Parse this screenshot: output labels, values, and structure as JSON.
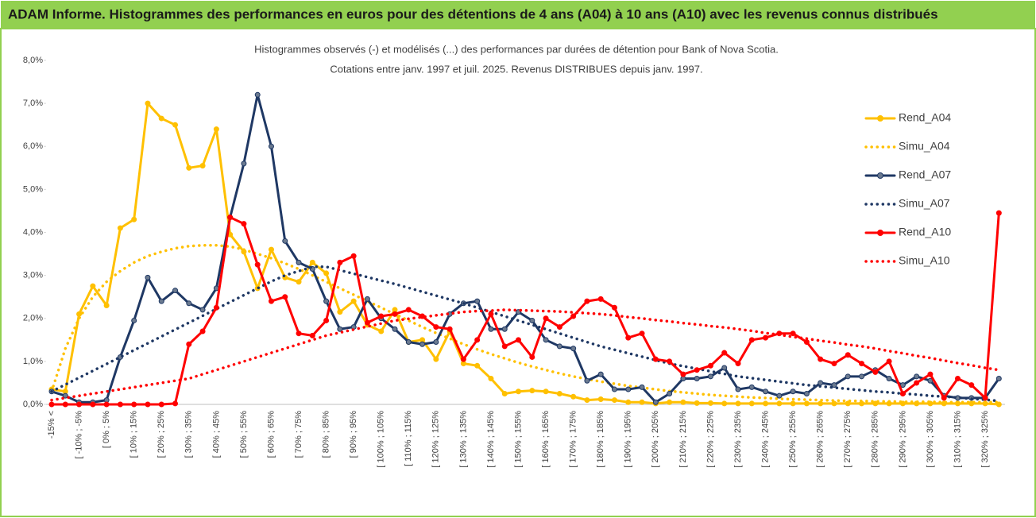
{
  "chart_data": {
    "type": "line",
    "title": "ADAM Informe. Histogrammes des performances en euros pour des détentions de 4 ans (A04) à 10 ans (A10) avec les revenus connus distribués",
    "subtitle": [
      "Histogrammes observés (-) et modélisés (...) des performances par durées de détention pour Bank of Nova Scotia.",
      "Cotations entre janv. 1997 et juil. 2025. Revenus DISTRIBUES depuis janv. 1997."
    ],
    "categories": [
      "-15% <",
      null,
      "[ -10% ; -5%",
      null,
      "[ 0% ; 5%",
      null,
      "[ 10% ; 15%",
      null,
      "[ 20% ; 25%",
      null,
      "[ 30% ; 35%",
      null,
      "[ 40% ; 45%",
      null,
      "[ 50% ; 55%",
      null,
      "[ 60% ; 65%",
      null,
      "[ 70% ; 75%",
      null,
      "[ 80% ; 85%",
      null,
      "[ 90% ; 95%",
      null,
      "[ 100% ; 105%",
      null,
      "[ 110% ; 115%",
      null,
      "[ 120% ; 125%",
      null,
      "[ 130% ; 135%",
      null,
      "[ 140% ; 145%",
      null,
      "[ 150% ; 155%",
      null,
      "[ 160% ; 165%",
      null,
      "[ 170% ; 175%",
      null,
      "[ 180% ; 185%",
      null,
      "[ 190% ; 195%",
      null,
      "[ 200% ; 205%",
      null,
      "[ 210% ; 215%",
      null,
      "[ 220% ; 225%",
      null,
      "[ 230% ; 235%",
      null,
      "[ 240% ; 245%",
      null,
      "[ 250% ; 255%",
      null,
      "[ 260% ; 265%",
      null,
      "[ 270% ; 275%",
      null,
      "[ 280% ; 285%",
      null,
      "[ 290% ; 295%",
      null,
      "[ 300% ; 305%",
      null,
      "[ 310% ; 315%",
      null,
      "[ 320% ; 325%",
      null
    ],
    "ylim": [
      0,
      8
    ],
    "yticks": [
      {
        "value": 0,
        "label": "0,0%"
      },
      {
        "value": 1,
        "label": "1,0%"
      },
      {
        "value": 2,
        "label": "2,0%"
      },
      {
        "value": 3,
        "label": "3,0%"
      },
      {
        "value": 4,
        "label": "4,0%"
      },
      {
        "value": 5,
        "label": "5,0%"
      },
      {
        "value": 6,
        "label": "6,0%"
      },
      {
        "value": 7,
        "label": "7,0%"
      },
      {
        "value": 8,
        "label": "8,0%"
      }
    ],
    "grid": false,
    "legend": "right",
    "series": [
      {
        "name": "Rend_A04",
        "color": "#ffc000",
        "style": "solid",
        "markers": true,
        "values": [
          0.35,
          0.3,
          2.1,
          2.75,
          2.3,
          4.1,
          4.3,
          7.0,
          6.65,
          6.5,
          5.5,
          5.55,
          6.4,
          3.95,
          3.55,
          2.7,
          3.6,
          2.95,
          2.85,
          3.3,
          3.05,
          2.15,
          2.4,
          1.85,
          1.7,
          2.2,
          1.45,
          1.5,
          1.05,
          1.7,
          0.95,
          0.9,
          0.6,
          0.25,
          0.3,
          0.32,
          0.3,
          0.25,
          0.18,
          0.1,
          0.12,
          0.1,
          0.05,
          0.05,
          0.02,
          0.05,
          0.05,
          0.03,
          0.03,
          0.02,
          0.02,
          0.02,
          0.02,
          0.02,
          0.02,
          0.02,
          0.02,
          0.02,
          0.02,
          0.02,
          0.02,
          0.02,
          0.02,
          0.02,
          0.02,
          0.02,
          0.02,
          0.02,
          0.02,
          0
        ]
      },
      {
        "name": "Simu_A04",
        "color": "#ffc000",
        "style": "dotted",
        "markers": false,
        "values": [
          0.3,
          1.3,
          2.0,
          2.5,
          2.85,
          3.1,
          3.3,
          3.45,
          3.55,
          3.63,
          3.68,
          3.7,
          3.7,
          3.67,
          3.6,
          3.5,
          3.4,
          3.28,
          3.15,
          3.0,
          2.85,
          2.7,
          2.55,
          2.4,
          2.25,
          2.1,
          1.95,
          1.8,
          1.66,
          1.53,
          1.4,
          1.28,
          1.17,
          1.07,
          0.97,
          0.88,
          0.8,
          0.72,
          0.65,
          0.59,
          0.53,
          0.48,
          0.43,
          0.39,
          0.35,
          0.31,
          0.28,
          0.25,
          0.22,
          0.2,
          0.18,
          0.16,
          0.15,
          0.13,
          0.12,
          0.11,
          0.1,
          0.09,
          0.08,
          0.08,
          0.07,
          0.07,
          0.06,
          0.06,
          0.06,
          0.05,
          0.05,
          0.05,
          0.05,
          0.05
        ]
      },
      {
        "name": "Rend_A07",
        "color": "#1f3864",
        "style": "solid",
        "markers": true,
        "values": [
          0.3,
          0.2,
          0.05,
          0.05,
          0.1,
          1.1,
          1.95,
          2.95,
          2.4,
          2.65,
          2.35,
          2.2,
          2.7,
          4.35,
          5.6,
          7.2,
          6.0,
          3.8,
          3.3,
          3.15,
          2.4,
          1.75,
          1.8,
          2.45,
          2.0,
          1.75,
          1.45,
          1.4,
          1.45,
          2.1,
          2.35,
          2.4,
          1.75,
          1.75,
          2.15,
          1.95,
          1.5,
          1.35,
          1.3,
          0.55,
          0.7,
          0.35,
          0.35,
          0.4,
          0.05,
          0.25,
          0.6,
          0.6,
          0.65,
          0.85,
          0.35,
          0.4,
          0.3,
          0.2,
          0.3,
          0.25,
          0.5,
          0.45,
          0.65,
          0.65,
          0.8,
          0.6,
          0.45,
          0.65,
          0.55,
          0.2,
          0.15,
          0.15,
          0.15,
          0.6
        ]
      },
      {
        "name": "Simu_A07",
        "color": "#1f3864",
        "style": "dotted",
        "markers": false,
        "values": [
          0.3,
          0.46,
          0.62,
          0.78,
          0.94,
          1.1,
          1.26,
          1.42,
          1.58,
          1.74,
          1.9,
          2.06,
          2.22,
          2.38,
          2.54,
          2.7,
          2.86,
          3.0,
          3.1,
          3.2,
          3.2,
          3.12,
          3.04,
          2.96,
          2.88,
          2.8,
          2.71,
          2.62,
          2.53,
          2.44,
          2.35,
          2.25,
          2.15,
          2.05,
          1.95,
          1.85,
          1.75,
          1.65,
          1.55,
          1.45,
          1.35,
          1.27,
          1.19,
          1.11,
          1.03,
          0.95,
          0.89,
          0.83,
          0.77,
          0.71,
          0.65,
          0.61,
          0.57,
          0.53,
          0.49,
          0.45,
          0.42,
          0.39,
          0.36,
          0.33,
          0.3,
          0.28,
          0.25,
          0.23,
          0.2,
          0.18,
          0.16,
          0.13,
          0.11,
          0.08
        ]
      },
      {
        "name": "Rend_A10",
        "color": "#ff0000",
        "style": "solid",
        "markers": true,
        "values": [
          0,
          0,
          0,
          0,
          0,
          0,
          0,
          0,
          0,
          0.02,
          1.4,
          1.7,
          2.25,
          4.35,
          4.2,
          3.25,
          2.4,
          2.5,
          1.65,
          1.6,
          1.95,
          3.3,
          3.45,
          1.9,
          2.05,
          2.1,
          2.2,
          2.05,
          1.8,
          1.75,
          1.05,
          1.5,
          2.1,
          1.35,
          1.5,
          1.1,
          2.0,
          1.8,
          2.05,
          2.4,
          2.45,
          2.25,
          1.55,
          1.65,
          1.05,
          1.0,
          0.7,
          0.8,
          0.9,
          1.2,
          0.95,
          1.5,
          1.55,
          1.65,
          1.65,
          1.45,
          1.05,
          0.95,
          1.15,
          0.95,
          0.75,
          1.0,
          0.25,
          0.5,
          0.7,
          0.15,
          0.6,
          0.45,
          0.15,
          4.45
        ]
      },
      {
        "name": "Simu_A10",
        "color": "#ff0000",
        "style": "dotted",
        "markers": false,
        "values": [
          0.1,
          0.15,
          0.2,
          0.25,
          0.3,
          0.35,
          0.4,
          0.45,
          0.5,
          0.55,
          0.6,
          0.7,
          0.8,
          0.9,
          1.0,
          1.1,
          1.2,
          1.3,
          1.4,
          1.5,
          1.6,
          1.67,
          1.74,
          1.81,
          1.88,
          1.95,
          1.99,
          2.03,
          2.07,
          2.11,
          2.15,
          2.17,
          2.18,
          2.2,
          2.19,
          2.18,
          2.17,
          2.16,
          2.14,
          2.12,
          2.1,
          2.07,
          2.03,
          2.0,
          1.96,
          1.93,
          1.89,
          1.86,
          1.82,
          1.79,
          1.75,
          1.71,
          1.66,
          1.62,
          1.57,
          1.53,
          1.48,
          1.44,
          1.39,
          1.35,
          1.3,
          1.24,
          1.19,
          1.13,
          1.08,
          1.02,
          0.96,
          0.91,
          0.85,
          0.8
        ]
      }
    ]
  }
}
